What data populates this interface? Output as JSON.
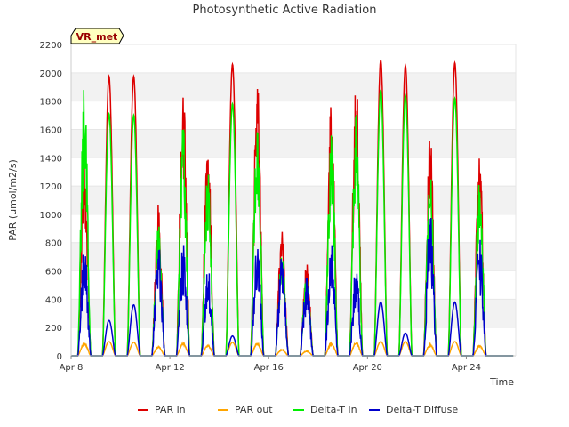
{
  "chart_data": {
    "type": "line",
    "title": "Photosynthetic Active Radiation",
    "xlabel": "Time",
    "ylabel": "PAR (umol/m2/s)",
    "site_label": "VR_met",
    "x_domain": [
      "Apr 8",
      "Apr 26"
    ],
    "x_ticks": [
      "Apr 8",
      "Apr 12",
      "Apr 16",
      "Apr 20",
      "Apr 24"
    ],
    "ylim": [
      0,
      2200
    ],
    "y_ticks": [
      0,
      200,
      400,
      600,
      800,
      1000,
      1200,
      1400,
      1600,
      1800,
      2000,
      2200
    ],
    "grid": "horizontal bands",
    "legend_position": "bottom",
    "days": [
      "Apr 8",
      "Apr 9",
      "Apr 10",
      "Apr 11",
      "Apr 12",
      "Apr 13",
      "Apr 14",
      "Apr 15",
      "Apr 16",
      "Apr 17",
      "Apr 18",
      "Apr 19",
      "Apr 20",
      "Apr 21",
      "Apr 22",
      "Apr 23",
      "Apr 24",
      "Apr 25"
    ],
    "series": [
      {
        "name": "PAR in",
        "color": "#dd0000",
        "daily_peak": [
          1460,
          1975,
          1975,
          1080,
          1910,
          1560,
          2060,
          1980,
          890,
          680,
          1820,
          2020,
          2090,
          2050,
          1580,
          2070,
          1450,
          0
        ]
      },
      {
        "name": "PAR out",
        "color": "#ffa500",
        "daily_peak": [
          90,
          100,
          95,
          65,
          90,
          75,
          95,
          90,
          45,
          35,
          90,
          95,
          100,
          100,
          80,
          100,
          75,
          0
        ]
      },
      {
        "name": "Delta-T in",
        "color": "#00ee00",
        "daily_peak": [
          1930,
          1710,
          1700,
          930,
          1650,
          1350,
          1780,
          1720,
          720,
          600,
          1610,
          1720,
          1880,
          1840,
          1340,
          1820,
          1270,
          0
        ]
      },
      {
        "name": "Delta-T Diffuse",
        "color": "#0000cc",
        "daily_peak": [
          800,
          250,
          360,
          800,
          840,
          650,
          140,
          800,
          720,
          560,
          820,
          640,
          380,
          160,
          1020,
          380,
          840,
          0
        ]
      }
    ]
  }
}
